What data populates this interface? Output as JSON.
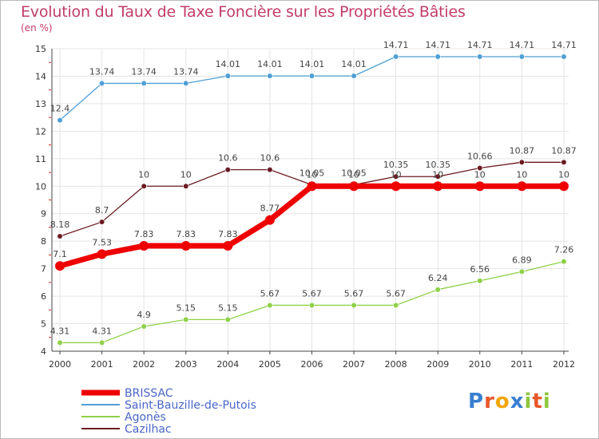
{
  "chart_data": {
    "type": "line",
    "title": "Evolution du Taux de Taxe Foncière sur les Propriétés Bâties",
    "ylabel": "(en %)",
    "xlabel": "",
    "ylim": [
      4,
      15
    ],
    "yticks": [
      4,
      5,
      6,
      7,
      8,
      9,
      10,
      11,
      12,
      13,
      14,
      15
    ],
    "categories": [
      "2000",
      "2001",
      "2002",
      "2003",
      "2004",
      "2005",
      "2006",
      "2007",
      "2008",
      "2009",
      "2010",
      "2011",
      "2012"
    ],
    "series": [
      {
        "name": "Saint-Bauzille-de-Putois",
        "color": "#4f9fd5",
        "values": [
          12.4,
          13.74,
          13.74,
          13.74,
          14.01,
          14.01,
          14.01,
          14.01,
          14.71,
          14.71,
          14.71,
          14.71,
          14.71
        ],
        "labels": [
          "12.4",
          "13.74",
          "13.74",
          "13.74",
          "14.01",
          "14.01",
          "14.01",
          "14.01",
          "14.71",
          "14.71",
          "14.71",
          "14.71",
          "14.71"
        ]
      },
      {
        "name": "Cazilhac",
        "color": "#6b1b22",
        "values": [
          8.18,
          8.7,
          10,
          10,
          10.6,
          10.6,
          10.05,
          10.05,
          10.35,
          10.35,
          10.66,
          10.87,
          10.87
        ],
        "labels": [
          "8.18",
          "8.7",
          "10",
          "10",
          "10.6",
          "10.6",
          "10.05",
          "10.05",
          "10.35",
          "10.35",
          "10.66",
          "10.87",
          "10.87"
        ]
      },
      {
        "name": "Agonès",
        "color": "#8ed147",
        "values": [
          4.31,
          4.31,
          4.9,
          5.15,
          5.15,
          5.67,
          5.67,
          5.67,
          5.67,
          6.24,
          6.56,
          6.89,
          7.26
        ],
        "labels": [
          "4.31",
          "4.31",
          "4.9",
          "5.15",
          "5.15",
          "5.67",
          "5.67",
          "5.67",
          "5.67",
          "6.24",
          "6.56",
          "6.89",
          "7.26"
        ]
      },
      {
        "name": "BRISSAC",
        "color": "#ee0000",
        "values": [
          7.1,
          7.53,
          7.83,
          7.83,
          7.83,
          8.77,
          10,
          10,
          10,
          10,
          10,
          10,
          10
        ],
        "labels": [
          "7.1",
          "7.53",
          "7.83",
          "7.83",
          "7.83",
          "8.77",
          "10",
          "10",
          "10",
          "10",
          "10",
          "10",
          "10"
        ]
      }
    ],
    "legend": [
      "BRISSAC",
      "Saint-Bauzille-de-Putois",
      "Agonès",
      "Cazilhac"
    ],
    "legend_position": "bottom-left"
  },
  "logo": {
    "letters": [
      "P",
      "r",
      "o",
      "x",
      "i",
      "t",
      "i"
    ],
    "colors": [
      "#3a7fd0",
      "#e8572a",
      "#f0a500",
      "#3a7fd0",
      "#8ec63f",
      "#e8572a",
      "#8ec63f"
    ]
  }
}
